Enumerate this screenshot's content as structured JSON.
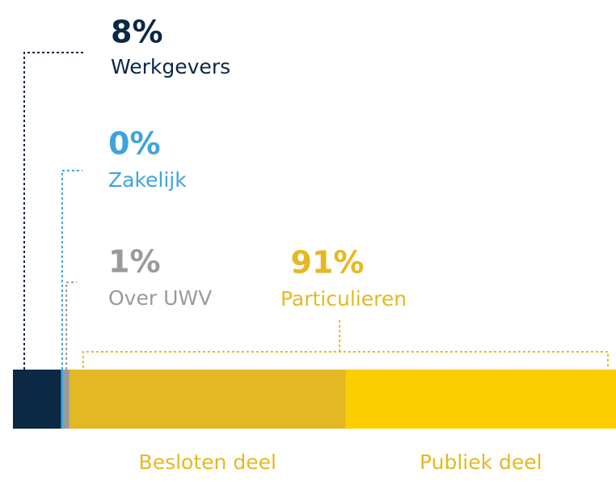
{
  "chart_data": {
    "type": "stacked-bar",
    "segments": [
      {
        "name": "Werkgevers",
        "value": 8,
        "value_label": "8%",
        "color": "#0b2845"
      },
      {
        "name": "Zakelijk",
        "value": 0.4,
        "value_label": "0%",
        "color": "#3ea3dc"
      },
      {
        "name": "Over UWV",
        "value": 1,
        "value_label": "1%",
        "color": "#9a9a9a"
      }
    ],
    "group": {
      "name": "Particulieren",
      "value": 91,
      "value_label": "91%",
      "color": "#e6b820",
      "parts": [
        {
          "name": "Besloten deel",
          "value": 46,
          "color": "#e2b824"
        },
        {
          "name": "Publiek deel",
          "value": 45,
          "color": "#fccd00"
        }
      ]
    }
  }
}
